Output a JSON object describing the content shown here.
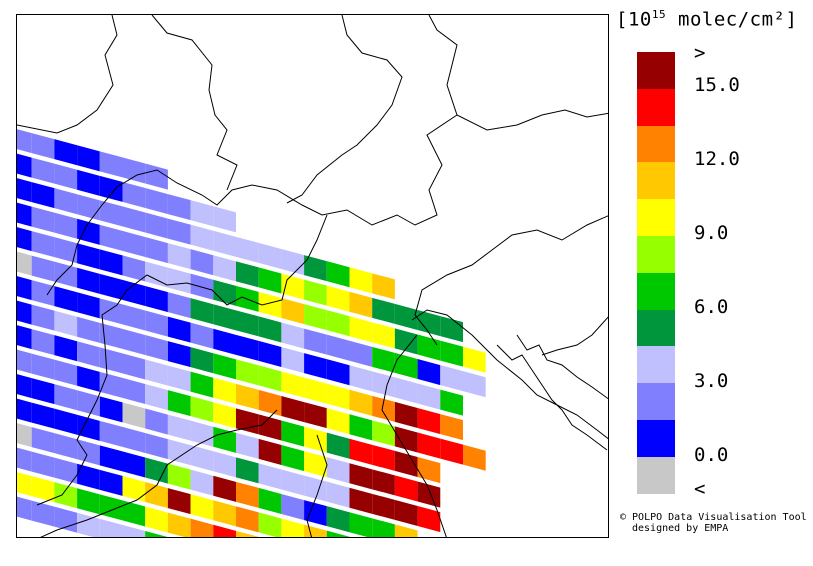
{
  "legend": {
    "unit_exp": "15",
    "unit_suffix": "molec/cm²",
    "colors": [
      "#c8c8c8",
      "#0000ff",
      "#8080ff",
      "#c0c0ff",
      "#00963c",
      "#00c800",
      "#96ff00",
      "#ffff00",
      "#ffc800",
      "#ff8200",
      "#ff0000",
      "#960000"
    ],
    "labels": [
      "<",
      "0.0",
      "3.0",
      "6.0",
      "9.0",
      "12.0",
      "15.0",
      ">"
    ]
  },
  "credit": {
    "line1": "© POLPO Data Visualisation Tool",
    "line2": "designed by EMPA"
  },
  "swath_rows": [
    [
      2,
      2,
      1,
      1,
      2,
      2,
      2
    ],
    [
      1,
      2,
      2,
      1,
      1,
      2,
      2,
      2,
      3,
      3
    ],
    [
      1,
      1,
      2,
      2,
      2,
      2,
      2,
      2,
      3,
      3,
      3,
      3,
      3,
      4,
      5,
      7,
      8
    ],
    [
      1,
      2,
      2,
      1,
      2,
      2,
      2,
      3,
      2,
      3,
      4,
      5,
      7,
      6,
      7,
      8,
      4,
      4,
      4,
      4
    ],
    [
      1,
      2,
      2,
      1,
      1,
      2,
      3,
      3,
      2,
      4,
      5,
      7,
      8,
      6,
      6,
      7,
      7,
      4,
      5,
      5,
      7
    ],
    [
      0,
      2,
      2,
      1,
      1,
      1,
      1,
      2,
      4,
      4,
      4,
      4,
      3,
      2,
      2,
      2,
      5,
      5,
      1,
      3,
      3
    ],
    [
      1,
      2,
      1,
      1,
      2,
      2,
      2,
      1,
      2,
      1,
      1,
      1,
      3,
      1,
      1,
      3,
      3,
      3,
      3,
      5
    ],
    [
      1,
      2,
      3,
      2,
      2,
      2,
      2,
      1,
      4,
      5,
      6,
      6,
      7,
      7,
      7,
      8,
      9,
      11,
      10,
      9
    ],
    [
      1,
      2,
      1,
      2,
      2,
      2,
      3,
      3,
      5,
      7,
      8,
      9,
      11,
      11,
      7,
      5,
      6,
      11,
      10,
      10,
      9
    ],
    [
      2,
      2,
      2,
      1,
      2,
      2,
      3,
      5,
      6,
      7,
      11,
      11,
      5,
      7,
      4,
      10,
      10,
      11,
      9
    ],
    [
      1,
      1,
      2,
      2,
      1,
      0,
      2,
      3,
      3,
      5,
      3,
      11,
      5,
      7,
      3,
      11,
      11,
      10,
      11
    ],
    [
      1,
      1,
      1,
      1,
      2,
      2,
      2,
      3,
      3,
      3,
      4,
      3,
      3,
      3,
      3,
      11,
      11,
      11,
      10
    ],
    [
      0,
      2,
      2,
      2,
      1,
      1,
      4,
      6,
      3,
      11,
      9,
      5,
      2,
      1,
      4,
      5,
      5,
      8
    ],
    [
      2,
      2,
      2,
      1,
      1,
      7,
      8,
      11,
      7,
      8,
      9,
      6,
      7,
      8,
      5
    ],
    [
      7,
      7,
      6,
      5,
      5,
      5,
      7,
      8,
      9,
      10,
      8,
      7
    ],
    [
      2,
      2,
      2,
      3,
      3,
      3,
      5,
      4,
      8
    ]
  ]
}
